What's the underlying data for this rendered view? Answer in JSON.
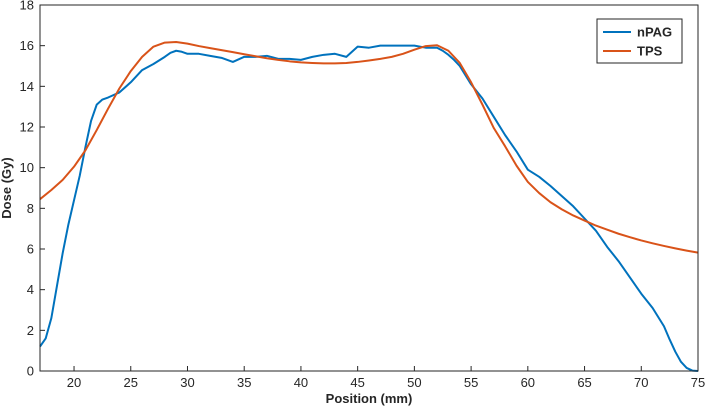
{
  "chart_data": {
    "type": "line",
    "xlabel": "Position (mm)",
    "ylabel": "Dose (Gy)",
    "xlim": [
      17,
      75
    ],
    "ylim": [
      0,
      18
    ],
    "xticks": [
      20,
      25,
      30,
      35,
      40,
      45,
      50,
      55,
      60,
      65,
      70,
      75
    ],
    "yticks": [
      0,
      2,
      4,
      6,
      8,
      10,
      12,
      14,
      16,
      18
    ],
    "legend": "top-right",
    "series": [
      {
        "name": "nPAG",
        "color": "#0072BD",
        "x": [
          17,
          17.5,
          18,
          18.5,
          19,
          19.5,
          20,
          20.5,
          21,
          21.5,
          22,
          22.5,
          23,
          24,
          25,
          26,
          27,
          28,
          28.5,
          29,
          29.5,
          30,
          31,
          32,
          33,
          34,
          35,
          36,
          37,
          38,
          39,
          40,
          41,
          42,
          43,
          44,
          45,
          46,
          47,
          48,
          49,
          50,
          51,
          52,
          52.5,
          53,
          53.5,
          54,
          55,
          56,
          57,
          58,
          59,
          60,
          61,
          62,
          63,
          64,
          65,
          66,
          67,
          68,
          69,
          70,
          71,
          72,
          72.5,
          73,
          73.5,
          74,
          74.5,
          75
        ],
        "y": [
          1.2,
          1.6,
          2.6,
          4.2,
          5.8,
          7.2,
          8.4,
          9.6,
          11.0,
          12.3,
          13.1,
          13.35,
          13.45,
          13.7,
          14.2,
          14.8,
          15.1,
          15.45,
          15.65,
          15.75,
          15.7,
          15.6,
          15.6,
          15.5,
          15.4,
          15.2,
          15.45,
          15.45,
          15.5,
          15.35,
          15.35,
          15.3,
          15.45,
          15.55,
          15.6,
          15.45,
          15.95,
          15.9,
          16.0,
          16.0,
          16.0,
          16.0,
          15.9,
          15.9,
          15.75,
          15.55,
          15.3,
          15.0,
          14.1,
          13.4,
          12.5,
          11.6,
          10.8,
          9.9,
          9.55,
          9.1,
          8.6,
          8.1,
          7.5,
          6.9,
          6.1,
          5.4,
          4.6,
          3.8,
          3.1,
          2.2,
          1.55,
          0.95,
          0.45,
          0.15,
          0.02,
          0.0
        ]
      },
      {
        "name": "TPS",
        "color": "#D95319",
        "x": [
          17,
          18,
          19,
          20,
          21,
          22,
          23,
          24,
          25,
          26,
          27,
          28,
          29,
          30,
          31,
          32,
          33,
          34,
          35,
          36,
          37,
          38,
          39,
          40,
          41,
          42,
          43,
          44,
          45,
          46,
          47,
          48,
          49,
          50,
          51,
          52,
          53,
          54,
          55,
          56,
          57,
          58,
          59,
          60,
          61,
          62,
          63,
          64,
          65,
          66,
          67,
          68,
          69,
          70,
          71,
          72,
          73,
          74,
          75
        ],
        "y": [
          8.45,
          8.9,
          9.4,
          10.05,
          10.85,
          11.85,
          12.9,
          13.9,
          14.75,
          15.45,
          15.95,
          16.15,
          16.18,
          16.1,
          15.98,
          15.88,
          15.78,
          15.68,
          15.58,
          15.48,
          15.38,
          15.3,
          15.23,
          15.18,
          15.15,
          15.13,
          15.13,
          15.15,
          15.2,
          15.27,
          15.35,
          15.45,
          15.6,
          15.8,
          15.98,
          16.02,
          15.75,
          15.15,
          14.2,
          13.1,
          11.95,
          11.05,
          10.1,
          9.3,
          8.75,
          8.3,
          7.95,
          7.65,
          7.4,
          7.15,
          6.95,
          6.75,
          6.58,
          6.42,
          6.28,
          6.15,
          6.03,
          5.92,
          5.82
        ]
      }
    ]
  }
}
